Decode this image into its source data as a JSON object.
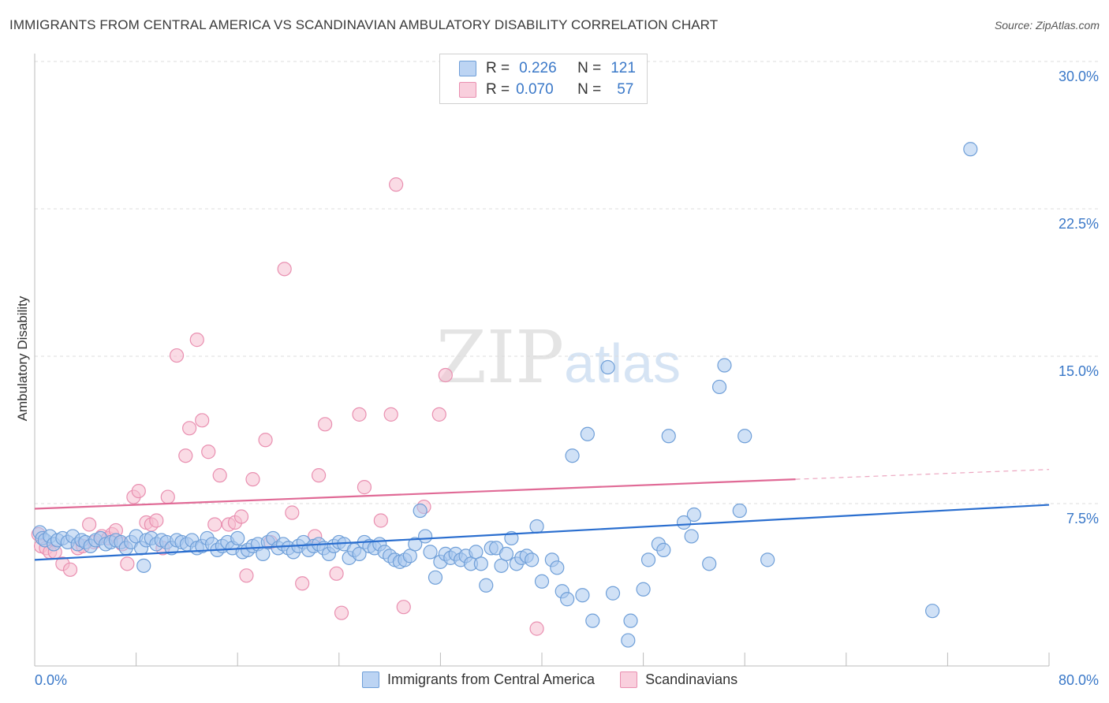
{
  "title": "IMMIGRANTS FROM CENTRAL AMERICA VS SCANDINAVIAN AMBULATORY DISABILITY CORRELATION CHART",
  "source": "Source: ZipAtlas.com",
  "watermark": {
    "zip": "ZIP",
    "atlas": "atlas"
  },
  "legend_box": {
    "rows": [
      {
        "r_label": "R =",
        "r_value": "0.226",
        "n_label": "N =",
        "n_value": "121"
      },
      {
        "r_label": "R =",
        "r_value": "0.070",
        "n_label": "N =",
        "n_value": "57"
      }
    ]
  },
  "colors": {
    "blue_fill": "#a9c8ef",
    "blue_stroke": "#6f9fd8",
    "blue_line": "#2a6ecf",
    "pink_fill": "#f6bdd0",
    "pink_stroke": "#e98fb0",
    "pink_line": "#e06a96",
    "tick_text": "#3a78c8",
    "grid": "#dddddd"
  },
  "chart_data": {
    "type": "scatter",
    "title": "IMMIGRANTS FROM CENTRAL AMERICA VS SCANDINAVIAN AMBULATORY DISABILITY CORRELATION CHART",
    "xlabel": "",
    "ylabel": "Ambulatory Disability",
    "xlim": [
      0,
      80
    ],
    "ylim": [
      0,
      30
    ],
    "x_tick_labels": [
      "0.0%",
      "80.0%"
    ],
    "y_ticks": [
      7.5,
      15.0,
      22.5,
      30.0
    ],
    "y_tick_labels": [
      "7.5%",
      "15.0%",
      "22.5%",
      "30.0%"
    ],
    "grid": true,
    "legend_position": "bottom",
    "series": [
      {
        "name": "Immigrants from Central America",
        "color": "#a9c8ef",
        "trend": {
          "x": [
            0,
            80
          ],
          "y": [
            5.4,
            8.2
          ]
        },
        "trend_solid_to": 80,
        "points": [
          [
            0.4,
            6.8
          ],
          [
            0.6,
            6.5
          ],
          [
            0.8,
            6.4
          ],
          [
            1.2,
            6.6
          ],
          [
            1.5,
            6.2
          ],
          [
            1.8,
            6.4
          ],
          [
            2.2,
            6.5
          ],
          [
            2.6,
            6.3
          ],
          [
            3.0,
            6.6
          ],
          [
            3.4,
            6.2
          ],
          [
            3.7,
            6.4
          ],
          [
            4.0,
            6.3
          ],
          [
            4.4,
            6.1
          ],
          [
            4.8,
            6.4
          ],
          [
            5.2,
            6.5
          ],
          [
            5.6,
            6.2
          ],
          [
            6.0,
            6.3
          ],
          [
            6.4,
            6.4
          ],
          [
            6.8,
            6.3
          ],
          [
            7.2,
            6.0
          ],
          [
            7.6,
            6.3
          ],
          [
            8.0,
            6.6
          ],
          [
            8.4,
            6.0
          ],
          [
            8.8,
            6.4
          ],
          [
            9.2,
            6.5
          ],
          [
            9.6,
            6.2
          ],
          [
            10.0,
            6.4
          ],
          [
            10.4,
            6.3
          ],
          [
            10.8,
            6.0
          ],
          [
            11.2,
            6.4
          ],
          [
            11.6,
            6.3
          ],
          [
            12.0,
            6.2
          ],
          [
            12.4,
            6.4
          ],
          [
            12.8,
            6.0
          ],
          [
            13.2,
            6.1
          ],
          [
            13.6,
            6.5
          ],
          [
            14.0,
            6.2
          ],
          [
            14.4,
            5.9
          ],
          [
            14.8,
            6.1
          ],
          [
            15.2,
            6.3
          ],
          [
            15.6,
            6.0
          ],
          [
            16.0,
            6.5
          ],
          [
            16.4,
            5.8
          ],
          [
            16.8,
            5.9
          ],
          [
            17.2,
            6.1
          ],
          [
            17.6,
            6.2
          ],
          [
            18.0,
            5.7
          ],
          [
            18.4,
            6.3
          ],
          [
            18.8,
            6.5
          ],
          [
            19.2,
            6.0
          ],
          [
            19.6,
            6.2
          ],
          [
            20.0,
            6.0
          ],
          [
            20.4,
            5.8
          ],
          [
            20.8,
            6.1
          ],
          [
            21.2,
            6.3
          ],
          [
            21.6,
            5.9
          ],
          [
            22.0,
            6.1
          ],
          [
            22.4,
            6.2
          ],
          [
            22.8,
            6.0
          ],
          [
            23.2,
            5.7
          ],
          [
            23.6,
            6.1
          ],
          [
            24.0,
            6.3
          ],
          [
            24.4,
            6.2
          ],
          [
            24.8,
            5.5
          ],
          [
            25.2,
            5.9
          ],
          [
            25.6,
            5.7
          ],
          [
            26.0,
            6.3
          ],
          [
            26.4,
            6.1
          ],
          [
            26.8,
            6.0
          ],
          [
            27.2,
            6.2
          ],
          [
            27.6,
            5.8
          ],
          [
            28.0,
            5.6
          ],
          [
            28.4,
            5.4
          ],
          [
            28.8,
            5.3
          ],
          [
            29.2,
            5.4
          ],
          [
            29.6,
            5.6
          ],
          [
            30.0,
            6.2
          ],
          [
            30.4,
            7.9
          ],
          [
            30.8,
            6.6
          ],
          [
            31.2,
            5.8
          ],
          [
            31.6,
            4.5
          ],
          [
            32.0,
            5.3
          ],
          [
            32.4,
            5.7
          ],
          [
            32.8,
            5.5
          ],
          [
            33.2,
            5.7
          ],
          [
            33.6,
            5.4
          ],
          [
            34.0,
            5.6
          ],
          [
            34.4,
            5.2
          ],
          [
            34.8,
            5.8
          ],
          [
            35.2,
            5.2
          ],
          [
            35.6,
            4.1
          ],
          [
            36.0,
            6.0
          ],
          [
            36.4,
            6.0
          ],
          [
            36.8,
            5.1
          ],
          [
            37.2,
            5.7
          ],
          [
            37.6,
            6.5
          ],
          [
            38.0,
            5.2
          ],
          [
            38.4,
            5.5
          ],
          [
            38.8,
            5.6
          ],
          [
            39.2,
            5.4
          ],
          [
            39.6,
            7.1
          ],
          [
            40.0,
            4.3
          ],
          [
            40.8,
            5.4
          ],
          [
            41.2,
            5.0
          ],
          [
            41.6,
            3.8
          ],
          [
            42.0,
            3.4
          ],
          [
            42.4,
            10.7
          ],
          [
            43.6,
            11.8
          ],
          [
            43.2,
            3.6
          ],
          [
            44.0,
            2.3
          ],
          [
            45.2,
            15.2
          ],
          [
            45.6,
            3.7
          ],
          [
            46.8,
            1.3
          ],
          [
            47.0,
            2.3
          ],
          [
            48.4,
            5.4
          ],
          [
            49.2,
            6.2
          ],
          [
            49.6,
            5.9
          ],
          [
            50.0,
            11.7
          ],
          [
            51.2,
            7.3
          ],
          [
            51.8,
            6.6
          ],
          [
            52.0,
            7.7
          ],
          [
            53.2,
            5.2
          ],
          [
            54.0,
            14.2
          ],
          [
            54.4,
            15.3
          ],
          [
            55.6,
            7.9
          ],
          [
            56.0,
            11.7
          ],
          [
            57.8,
            5.4
          ],
          [
            70.8,
            2.8
          ],
          [
            73.8,
            26.3
          ],
          [
            8.6,
            5.1
          ],
          [
            48.0,
            3.9
          ]
        ]
      },
      {
        "name": "Scandinavians",
        "color": "#f6bdd0",
        "trend": {
          "x": [
            0,
            80
          ],
          "y": [
            8.0,
            10.0
          ]
        },
        "trend_solid_to": 60,
        "points": [
          [
            0.3,
            6.7
          ],
          [
            0.5,
            6.1
          ],
          [
            0.9,
            6.0
          ],
          [
            1.2,
            5.8
          ],
          [
            1.6,
            5.8
          ],
          [
            2.2,
            5.2
          ],
          [
            2.8,
            4.9
          ],
          [
            3.4,
            6.0
          ],
          [
            3.8,
            6.1
          ],
          [
            4.3,
            7.2
          ],
          [
            4.7,
            6.3
          ],
          [
            5.3,
            6.6
          ],
          [
            5.8,
            6.5
          ],
          [
            6.1,
            6.7
          ],
          [
            6.4,
            6.9
          ],
          [
            6.9,
            6.2
          ],
          [
            7.3,
            5.2
          ],
          [
            7.8,
            8.6
          ],
          [
            8.2,
            8.9
          ],
          [
            8.8,
            7.3
          ],
          [
            9.2,
            7.2
          ],
          [
            9.6,
            7.4
          ],
          [
            10.1,
            6.0
          ],
          [
            10.5,
            8.6
          ],
          [
            11.2,
            15.8
          ],
          [
            11.9,
            10.7
          ],
          [
            12.2,
            12.1
          ],
          [
            12.8,
            16.6
          ],
          [
            13.2,
            12.5
          ],
          [
            13.7,
            10.9
          ],
          [
            14.2,
            7.2
          ],
          [
            14.6,
            9.7
          ],
          [
            15.3,
            7.2
          ],
          [
            15.8,
            7.3
          ],
          [
            16.3,
            7.6
          ],
          [
            16.7,
            4.6
          ],
          [
            17.2,
            9.5
          ],
          [
            18.2,
            11.5
          ],
          [
            18.6,
            6.3
          ],
          [
            19.7,
            20.2
          ],
          [
            20.3,
            7.8
          ],
          [
            21.1,
            4.2
          ],
          [
            22.1,
            6.6
          ],
          [
            22.4,
            9.7
          ],
          [
            22.9,
            12.3
          ],
          [
            23.8,
            4.7
          ],
          [
            24.2,
            2.7
          ],
          [
            25.6,
            12.8
          ],
          [
            26.0,
            9.1
          ],
          [
            27.3,
            7.4
          ],
          [
            28.1,
            12.8
          ],
          [
            28.5,
            24.5
          ],
          [
            29.1,
            3.0
          ],
          [
            30.7,
            8.1
          ],
          [
            31.9,
            12.8
          ],
          [
            32.4,
            14.8
          ],
          [
            39.6,
            1.9
          ]
        ]
      }
    ]
  },
  "bottom_legend": {
    "series1": "Immigrants from Central America",
    "series2": "Scandinavians"
  }
}
